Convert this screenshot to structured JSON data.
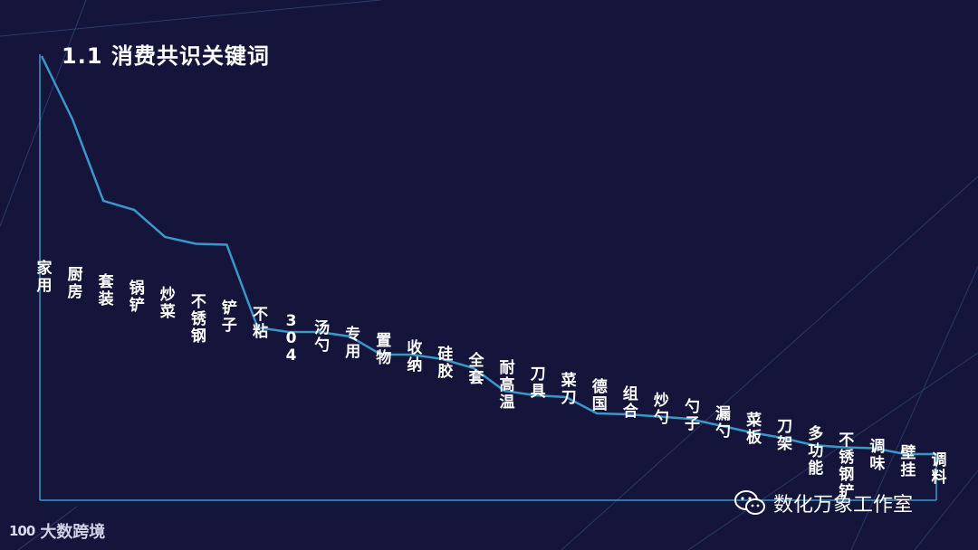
{
  "page": {
    "title": "1.1 消费共识关键词"
  },
  "colors": {
    "background": "#15143a",
    "line": "#3c97c9",
    "axis": "#3c97c9",
    "text": "#ffffff"
  },
  "watermark": {
    "icon": "wechat-icon",
    "text": "数化万象工作室"
  },
  "brand": {
    "logo_text": "100",
    "name": "大数跨境"
  },
  "chart_data": {
    "type": "line",
    "title": "1.1 消费共识关键词",
    "xlabel": "",
    "ylabel": "",
    "ylim": [
      0,
      100
    ],
    "grid": false,
    "legend": "none",
    "categories": [
      "家用",
      "厨房",
      "套装",
      "锅铲",
      "炒菜",
      "不锈钢",
      "铲子",
      "不粘",
      "304",
      "汤勺",
      "专用",
      "置物",
      "收纳",
      "硅胶",
      "全套",
      "耐高温",
      "刀具",
      "菜刀",
      "德国",
      "组合",
      "炒勺",
      "勺子",
      "漏勺",
      "菜板",
      "刀架",
      "多功能",
      "不锈钢铲",
      "调味",
      "壁挂",
      "调料"
    ],
    "values": [
      100,
      86,
      68,
      66,
      60,
      58.5,
      58.3,
      40,
      39,
      39,
      38,
      34,
      34,
      33,
      31,
      26,
      25,
      24.6,
      21,
      20.8,
      20.3,
      19.8,
      18.3,
      16.8,
      15.6,
      14,
      13.5,
      13.3,
      12,
      12
    ]
  }
}
